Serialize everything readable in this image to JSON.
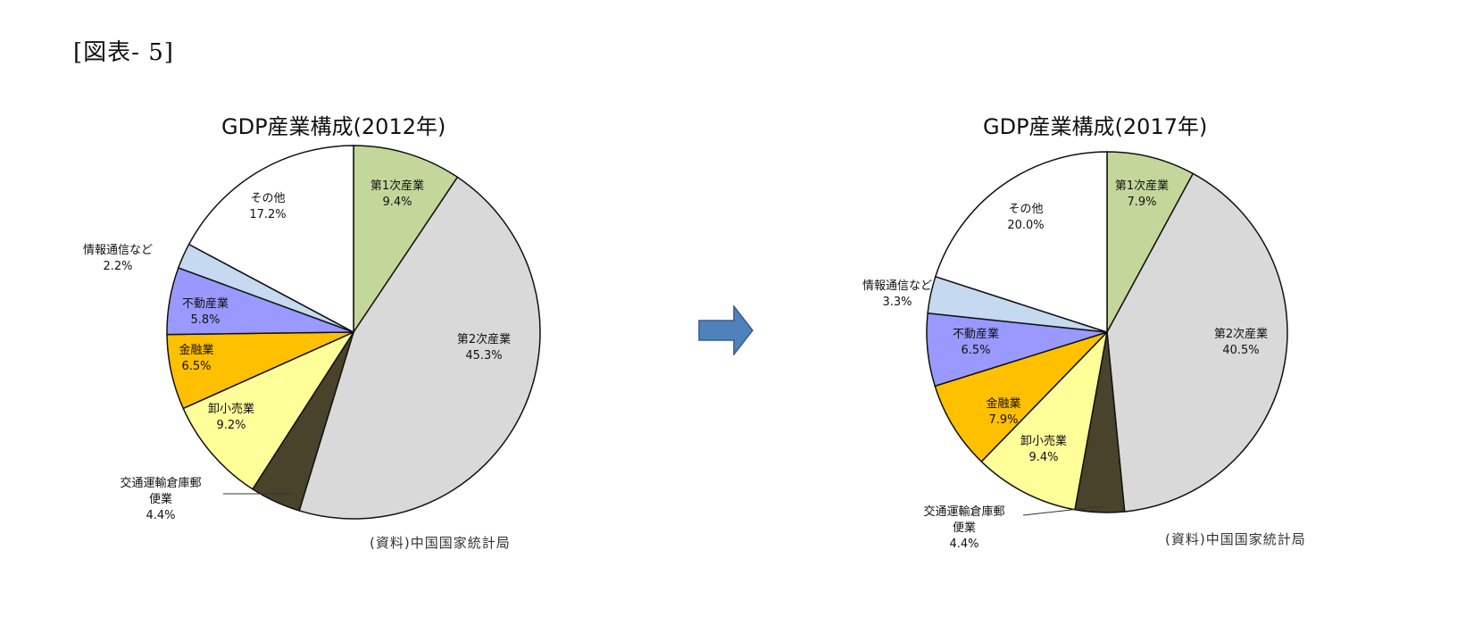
{
  "figure_label": "[図表- 5]",
  "chart_data": [
    {
      "type": "pie",
      "title": "GDP産業構成(2012年)",
      "source": "(資料)中国国家統計局",
      "slices": [
        {
          "name": "第1次産業",
          "value": 9.4,
          "value_label": "9.4%",
          "color": "#c4d79b"
        },
        {
          "name": "第2次産業",
          "value": 45.3,
          "value_label": "45.3%",
          "color": "#d9d9d9"
        },
        {
          "name": "交通運輸倉庫郵便業",
          "value": 4.4,
          "value_label": "4.4%",
          "color": "#4a432c"
        },
        {
          "name": "卸小売業",
          "value": 9.2,
          "value_label": "9.2%",
          "color": "#ffff99"
        },
        {
          "name": "金融業",
          "value": 6.5,
          "value_label": "6.5%",
          "color": "#ffc000"
        },
        {
          "name": "不動産業",
          "value": 5.8,
          "value_label": "5.8%",
          "color": "#9999ff"
        },
        {
          "name": "情報通信など",
          "value": 2.2,
          "value_label": "2.2%",
          "color": "#c5d9f1"
        },
        {
          "name": "その他",
          "value": 17.2,
          "value_label": "17.2%",
          "color": "#ffffff"
        }
      ]
    },
    {
      "type": "pie",
      "title": "GDP産業構成(2017年)",
      "source": "(資料)中国国家統計局",
      "slices": [
        {
          "name": "第1次産業",
          "value": 7.9,
          "value_label": "7.9%",
          "color": "#c4d79b"
        },
        {
          "name": "第2次産業",
          "value": 40.5,
          "value_label": "40.5%",
          "color": "#d9d9d9"
        },
        {
          "name": "交通運輸倉庫郵便業",
          "value": 4.4,
          "value_label": "4.4%",
          "color": "#4a432c"
        },
        {
          "name": "卸小売業",
          "value": 9.4,
          "value_label": "9.4%",
          "color": "#ffff99"
        },
        {
          "name": "金融業",
          "value": 7.9,
          "value_label": "7.9%",
          "color": "#ffc000"
        },
        {
          "name": "不動産業",
          "value": 6.5,
          "value_label": "6.5%",
          "color": "#9999ff"
        },
        {
          "name": "情報通信など",
          "value": 3.3,
          "value_label": "3.3%",
          "color": "#c5d9f1"
        },
        {
          "name": "その他",
          "value": 20.0,
          "value_label": "20.0%",
          "color": "#ffffff"
        }
      ]
    }
  ],
  "arrow_color": "#4f81bd"
}
